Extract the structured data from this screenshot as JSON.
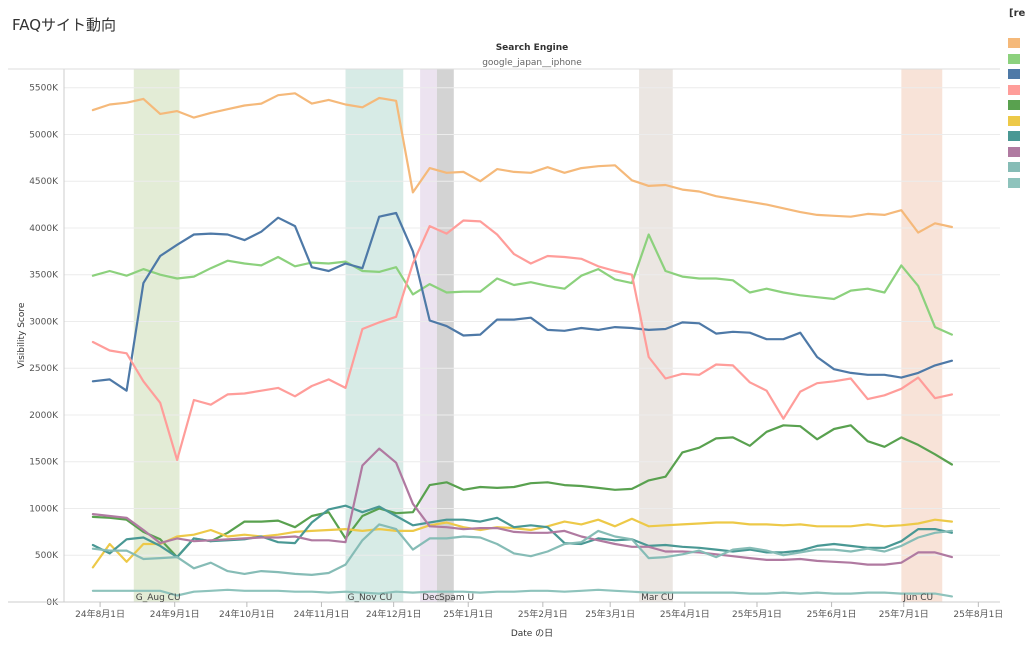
{
  "page": {
    "title": "FAQサイト動向",
    "legend_header": "[re"
  },
  "chart_data": {
    "type": "line",
    "header": "Search Engine",
    "facet": "google_japan__iphone",
    "xlabel": "Date の日",
    "ylabel": "Visibility Score",
    "ylim": [
      0,
      5700000
    ],
    "yticks": [
      {
        "v": 0,
        "label": "0K"
      },
      {
        "v": 500000,
        "label": "500K"
      },
      {
        "v": 1000000,
        "label": "1000K"
      },
      {
        "v": 1500000,
        "label": "1500K"
      },
      {
        "v": 2000000,
        "label": "2000K"
      },
      {
        "v": 2500000,
        "label": "2500K"
      },
      {
        "v": 3000000,
        "label": "3000K"
      },
      {
        "v": 3500000,
        "label": "3500K"
      },
      {
        "v": 4000000,
        "label": "4000K"
      },
      {
        "v": 4500000,
        "label": "4500K"
      },
      {
        "v": 5000000,
        "label": "5000K"
      },
      {
        "v": 5500000,
        "label": "5500K"
      }
    ],
    "xlim": [
      "2024-07-17",
      "2025-08-10"
    ],
    "xticks": [
      {
        "d": "2024-08-01",
        "label": "24年8月1日"
      },
      {
        "d": "2024-09-01",
        "label": "24年9月1日"
      },
      {
        "d": "2024-10-01",
        "label": "24年10月1日"
      },
      {
        "d": "2024-11-01",
        "label": "24年11月1日"
      },
      {
        "d": "2024-12-01",
        "label": "24年12月1日"
      },
      {
        "d": "2025-01-01",
        "label": "25年1月1日"
      },
      {
        "d": "2025-02-01",
        "label": "25年2月1日"
      },
      {
        "d": "2025-03-01",
        "label": "25年3月1日"
      },
      {
        "d": "2025-04-01",
        "label": "25年4月1日"
      },
      {
        "d": "2025-05-01",
        "label": "25年5月1日"
      },
      {
        "d": "2025-06-01",
        "label": "25年6月1日"
      },
      {
        "d": "2025-07-01",
        "label": "25年7月1日"
      },
      {
        "d": "2025-08-01",
        "label": "25年8月1日"
      }
    ],
    "grid": true,
    "legend": "right",
    "bands": [
      {
        "label": "G_Aug CU",
        "start": "2024-08-15",
        "end": "2024-09-03",
        "color": "#e3ecd6"
      },
      {
        "label": "G_Nov CU",
        "start": "2024-11-11",
        "end": "2024-12-05",
        "color": "#d7ebe6"
      },
      {
        "label": "Dec",
        "start": "2024-12-12",
        "end": "2024-12-19",
        "color": "#ece3f0"
      },
      {
        "label": "Spam U",
        "start": "2024-12-19",
        "end": "2024-12-26",
        "color": "#d3d3d3"
      },
      {
        "label": "Mar CU",
        "start": "2025-03-13",
        "end": "2025-03-27",
        "color": "#ebe6e2"
      },
      {
        "label": "Jun CU",
        "start": "2025-06-30",
        "end": "2025-07-17",
        "color": "#f8e3d8"
      }
    ],
    "x": [
      "2024-07-29",
      "2024-08-05",
      "2024-08-12",
      "2024-08-19",
      "2024-08-26",
      "2024-09-02",
      "2024-09-09",
      "2024-09-16",
      "2024-09-23",
      "2024-09-30",
      "2024-10-07",
      "2024-10-14",
      "2024-10-21",
      "2024-10-28",
      "2024-11-04",
      "2024-11-11",
      "2024-11-18",
      "2024-11-25",
      "2024-12-02",
      "2024-12-09",
      "2024-12-16",
      "2024-12-23",
      "2024-12-30",
      "2025-01-06",
      "2025-01-13",
      "2025-01-20",
      "2025-01-27",
      "2025-02-03",
      "2025-02-10",
      "2025-02-17",
      "2025-02-24",
      "2025-03-03",
      "2025-03-10",
      "2025-03-17",
      "2025-03-24",
      "2025-03-31",
      "2025-04-07",
      "2025-04-14",
      "2025-04-21",
      "2025-04-28",
      "2025-05-05",
      "2025-05-12",
      "2025-05-19",
      "2025-05-26",
      "2025-06-02",
      "2025-06-09",
      "2025-06-16",
      "2025-06-23",
      "2025-06-30",
      "2025-07-07",
      "2025-07-14",
      "2025-07-21"
    ],
    "series": [
      {
        "color": "#f5b97a",
        "values": [
          5260000,
          5320000,
          5340000,
          5380000,
          5220000,
          5250000,
          5180000,
          5230000,
          5270000,
          5310000,
          5330000,
          5420000,
          5440000,
          5330000,
          5370000,
          5320000,
          5290000,
          5390000,
          5360000,
          4380000,
          4640000,
          4590000,
          4600000,
          4500000,
          4630000,
          4600000,
          4590000,
          4650000,
          4590000,
          4640000,
          4660000,
          4670000,
          4510000,
          4450000,
          4460000,
          4410000,
          4390000,
          4340000,
          4310000,
          4280000,
          4250000,
          4210000,
          4170000,
          4140000,
          4130000,
          4120000,
          4150000,
          4140000,
          4190000,
          3950000,
          4050000,
          4010000
        ]
      },
      {
        "color": "#8cd17d",
        "values": [
          3490000,
          3540000,
          3490000,
          3560000,
          3500000,
          3460000,
          3480000,
          3570000,
          3650000,
          3620000,
          3600000,
          3690000,
          3590000,
          3630000,
          3620000,
          3640000,
          3540000,
          3530000,
          3580000,
          3290000,
          3400000,
          3310000,
          3320000,
          3320000,
          3460000,
          3390000,
          3420000,
          3380000,
          3350000,
          3490000,
          3560000,
          3450000,
          3410000,
          3930000,
          3540000,
          3480000,
          3460000,
          3460000,
          3440000,
          3310000,
          3350000,
          3310000,
          3280000,
          3260000,
          3240000,
          3330000,
          3350000,
          3310000,
          3600000,
          3380000,
          2940000,
          2860000
        ]
      },
      {
        "color": "#4e79a7",
        "values": [
          2360000,
          2380000,
          2260000,
          3410000,
          3700000,
          3820000,
          3930000,
          3940000,
          3930000,
          3870000,
          3960000,
          4110000,
          4020000,
          3580000,
          3540000,
          3620000,
          3570000,
          4120000,
          4160000,
          3750000,
          3010000,
          2950000,
          2850000,
          2860000,
          3020000,
          3020000,
          3040000,
          2910000,
          2900000,
          2930000,
          2910000,
          2940000,
          2930000,
          2910000,
          2920000,
          2990000,
          2980000,
          2870000,
          2890000,
          2880000,
          2810000,
          2810000,
          2880000,
          2620000,
          2490000,
          2450000,
          2430000,
          2430000,
          2400000,
          2450000,
          2530000,
          2580000
        ]
      },
      {
        "color": "#ff9d9a",
        "values": [
          2780000,
          2690000,
          2660000,
          2360000,
          2130000,
          1520000,
          2160000,
          2110000,
          2220000,
          2230000,
          2260000,
          2290000,
          2200000,
          2310000,
          2380000,
          2290000,
          2920000,
          2990000,
          3050000,
          3620000,
          4020000,
          3940000,
          4080000,
          4070000,
          3930000,
          3720000,
          3620000,
          3700000,
          3690000,
          3670000,
          3590000,
          3540000,
          3500000,
          2620000,
          2390000,
          2440000,
          2430000,
          2540000,
          2530000,
          2350000,
          2260000,
          1960000,
          2250000,
          2340000,
          2360000,
          2390000,
          2170000,
          2210000,
          2280000,
          2400000,
          2180000,
          2220000
        ]
      },
      {
        "color": "#59a14f",
        "values": [
          910000,
          900000,
          880000,
          750000,
          670000,
          480000,
          680000,
          650000,
          740000,
          860000,
          860000,
          870000,
          800000,
          920000,
          960000,
          680000,
          920000,
          1000000,
          950000,
          960000,
          1250000,
          1280000,
          1200000,
          1230000,
          1220000,
          1230000,
          1270000,
          1280000,
          1250000,
          1240000,
          1220000,
          1200000,
          1210000,
          1300000,
          1340000,
          1600000,
          1650000,
          1750000,
          1760000,
          1670000,
          1820000,
          1890000,
          1880000,
          1740000,
          1850000,
          1890000,
          1720000,
          1660000,
          1760000,
          1680000,
          1580000,
          1470000
        ]
      },
      {
        "color": "#edc948",
        "values": [
          370000,
          620000,
          430000,
          620000,
          620000,
          700000,
          720000,
          770000,
          700000,
          720000,
          700000,
          720000,
          750000,
          760000,
          770000,
          780000,
          760000,
          780000,
          760000,
          760000,
          820000,
          850000,
          800000,
          770000,
          800000,
          790000,
          770000,
          810000,
          860000,
          830000,
          880000,
          810000,
          890000,
          810000,
          820000,
          830000,
          840000,
          850000,
          850000,
          830000,
          830000,
          820000,
          830000,
          810000,
          810000,
          810000,
          830000,
          810000,
          820000,
          840000,
          880000,
          860000
        ]
      },
      {
        "color": "#499894",
        "values": [
          610000,
          520000,
          670000,
          690000,
          600000,
          480000,
          680000,
          650000,
          660000,
          670000,
          700000,
          640000,
          630000,
          850000,
          990000,
          1030000,
          960000,
          1020000,
          920000,
          820000,
          850000,
          880000,
          880000,
          860000,
          900000,
          800000,
          820000,
          800000,
          630000,
          620000,
          680000,
          660000,
          670000,
          600000,
          610000,
          590000,
          580000,
          560000,
          540000,
          560000,
          530000,
          530000,
          550000,
          600000,
          620000,
          600000,
          580000,
          580000,
          650000,
          780000,
          780000,
          740000
        ]
      },
      {
        "color": "#b07aa1",
        "values": [
          940000,
          920000,
          900000,
          770000,
          630000,
          680000,
          650000,
          660000,
          670000,
          680000,
          690000,
          690000,
          700000,
          660000,
          660000,
          640000,
          1460000,
          1640000,
          1490000,
          1050000,
          810000,
          800000,
          780000,
          790000,
          790000,
          750000,
          740000,
          740000,
          760000,
          700000,
          660000,
          620000,
          590000,
          590000,
          540000,
          540000,
          530000,
          510000,
          490000,
          470000,
          450000,
          450000,
          460000,
          440000,
          430000,
          420000,
          400000,
          400000,
          420000,
          530000,
          530000,
          480000
        ]
      },
      {
        "color": "#86bcb6",
        "values": [
          570000,
          550000,
          550000,
          460000,
          470000,
          480000,
          360000,
          420000,
          330000,
          300000,
          330000,
          320000,
          300000,
          290000,
          310000,
          400000,
          660000,
          830000,
          780000,
          560000,
          680000,
          680000,
          700000,
          690000,
          620000,
          520000,
          490000,
          540000,
          620000,
          640000,
          760000,
          700000,
          670000,
          470000,
          480000,
          510000,
          550000,
          480000,
          560000,
          580000,
          550000,
          500000,
          530000,
          560000,
          560000,
          540000,
          570000,
          540000,
          600000,
          690000,
          740000,
          760000
        ]
      },
      {
        "color": "#8ec3bc",
        "values": [
          120000,
          120000,
          120000,
          120000,
          120000,
          70000,
          110000,
          120000,
          130000,
          120000,
          120000,
          120000,
          110000,
          110000,
          100000,
          110000,
          100000,
          90000,
          110000,
          100000,
          110000,
          110000,
          110000,
          100000,
          110000,
          110000,
          120000,
          120000,
          110000,
          120000,
          130000,
          120000,
          110000,
          100000,
          100000,
          100000,
          100000,
          100000,
          100000,
          90000,
          90000,
          100000,
          90000,
          100000,
          90000,
          90000,
          100000,
          100000,
          90000,
          90000,
          90000,
          60000
        ]
      }
    ]
  }
}
